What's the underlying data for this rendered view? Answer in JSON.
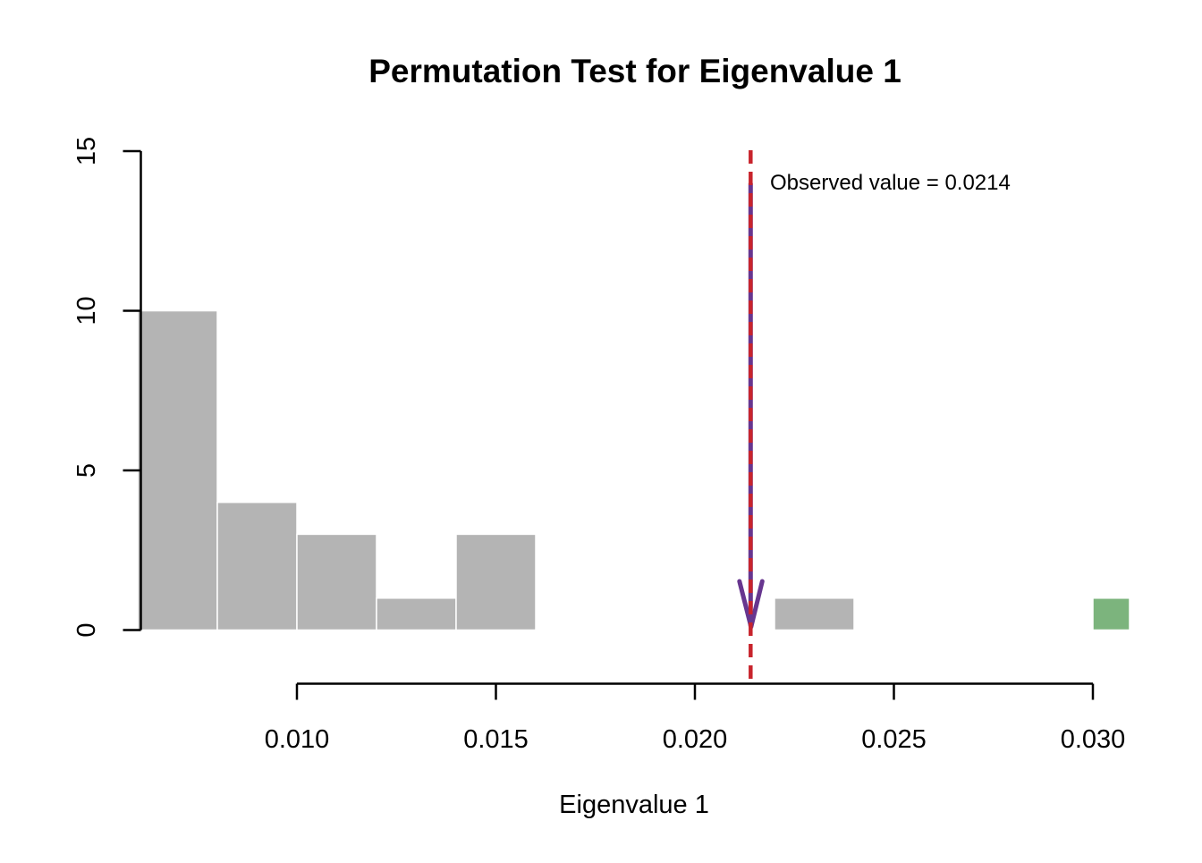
{
  "chart_data": {
    "type": "histogram",
    "title": "Permutation Test for Eigenvalue 1",
    "xlabel": "Eigenvalue 1",
    "ylabel": "",
    "xlim": [
      0.006,
      0.0323
    ],
    "ylim": [
      0,
      15
    ],
    "grid": false,
    "x_ticks": [
      {
        "value": 0.01,
        "label": "0.010"
      },
      {
        "value": 0.015,
        "label": "0.015"
      },
      {
        "value": 0.02,
        "label": "0.020"
      },
      {
        "value": 0.025,
        "label": "0.025"
      },
      {
        "value": 0.03,
        "label": "0.030"
      }
    ],
    "y_ticks": [
      {
        "value": 0,
        "label": "0"
      },
      {
        "value": 5,
        "label": "5"
      },
      {
        "value": 10,
        "label": "10"
      },
      {
        "value": 15,
        "label": "15"
      }
    ],
    "bin_width": 0.002,
    "bins": [
      {
        "x0": 0.006,
        "x1": 0.008,
        "count": 10,
        "highlight": false
      },
      {
        "x0": 0.008,
        "x1": 0.01,
        "count": 4,
        "highlight": false
      },
      {
        "x0": 0.01,
        "x1": 0.012,
        "count": 3,
        "highlight": false
      },
      {
        "x0": 0.012,
        "x1": 0.014,
        "count": 1,
        "highlight": false
      },
      {
        "x0": 0.014,
        "x1": 0.016,
        "count": 3,
        "highlight": false
      },
      {
        "x0": 0.022,
        "x1": 0.024,
        "count": 1,
        "highlight": false
      },
      {
        "x0": 0.03,
        "x1": 0.032,
        "count": 1,
        "highlight": true
      }
    ],
    "observed": {
      "value": 0.0214,
      "label": "Observed value = 0.0214",
      "arrow_from_count": 14,
      "arrow_to_count": 0
    },
    "colors": {
      "bar": "#b4b4b4",
      "bar_border": "#ffffff",
      "highlight_bar": "#7cb47d",
      "observed_line": "#c8242c",
      "arrow": "#67368f",
      "annotation_text": "#67368f",
      "axis": "#000000"
    },
    "legend": null
  }
}
